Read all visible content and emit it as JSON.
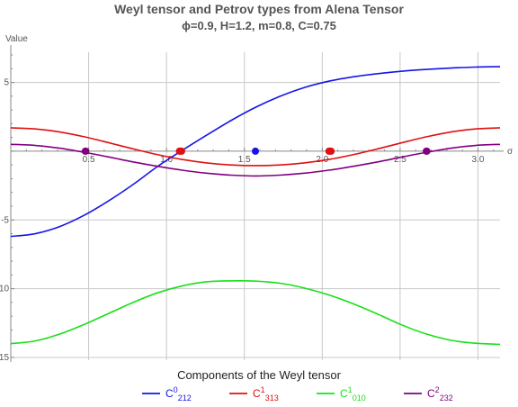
{
  "title": "Weyl tensor and Petrov types from Alena Tensor",
  "subtitle": "ϕ=0.9, H=1.2, m=0.8, C=0.75",
  "chart_data": {
    "type": "line",
    "ylabel": "Value",
    "xlabel": "σ",
    "xlim": [
      0,
      3.14159
    ],
    "ylim": [
      -15.2,
      7.2
    ],
    "grid": true,
    "x_ticks": [
      0.5,
      1.0,
      1.5,
      2.0,
      2.5,
      3.0
    ],
    "x_tick_labels": [
      "0.5",
      "1.0",
      "1.5",
      "2.0",
      "2.5",
      "3.0"
    ],
    "y_ticks": [
      -15,
      -10,
      -5,
      5
    ],
    "y_tick_labels": [
      "-15",
      "-10",
      "-5",
      "5"
    ],
    "x": [
      0,
      0.1571,
      0.3142,
      0.4712,
      0.6283,
      0.7854,
      0.9425,
      1.0996,
      1.2566,
      1.4137,
      1.5708,
      1.7279,
      1.885,
      2.042,
      2.1991,
      2.3562,
      2.5133,
      2.6704,
      2.8274,
      2.9845,
      3.1416
    ],
    "series": [
      {
        "color": "#1515e6",
        "values": [
          -6.2,
          -6.0,
          -5.48,
          -4.66,
          -3.61,
          -2.42,
          -1.11,
          0.05,
          1.16,
          2.23,
          3.19,
          3.99,
          4.63,
          5.09,
          5.41,
          5.64,
          5.82,
          5.95,
          6.05,
          6.12,
          6.15
        ]
      },
      {
        "color": "#e01010",
        "values": [
          1.7,
          1.62,
          1.4,
          1.05,
          0.62,
          0.17,
          -0.25,
          -0.6,
          -0.85,
          -1.0,
          -1.05,
          -1.0,
          -0.85,
          -0.6,
          -0.25,
          0.17,
          0.62,
          1.05,
          1.4,
          1.62,
          1.7
        ]
      },
      {
        "color": "#18e018",
        "values": [
          -14.0,
          -13.8,
          -13.3,
          -12.6,
          -11.8,
          -11.0,
          -10.3,
          -9.8,
          -9.5,
          -9.43,
          -9.45,
          -9.6,
          -9.95,
          -10.45,
          -11.1,
          -11.85,
          -12.65,
          -13.3,
          -13.75,
          -13.97,
          -14.05
        ]
      },
      {
        "color": "#800080",
        "values": [
          0.5,
          0.42,
          0.22,
          -0.08,
          -0.42,
          -0.78,
          -1.1,
          -1.38,
          -1.6,
          -1.74,
          -1.8,
          -1.74,
          -1.6,
          -1.38,
          -1.1,
          -0.78,
          -0.42,
          -0.08,
          0.22,
          0.42,
          0.5
        ]
      }
    ],
    "markers": [
      {
        "series": 0,
        "x": 1.5708,
        "y": 0,
        "shape": "dot"
      },
      {
        "series": 1,
        "x": 1.09,
        "y": 0,
        "shape": "bar",
        "width": 0.06
      },
      {
        "series": 1,
        "x": 2.05,
        "y": 0,
        "shape": "bar",
        "width": 0.06
      },
      {
        "series": 3,
        "x": 0.48,
        "y": 0,
        "shape": "bar",
        "width": 0.05
      },
      {
        "series": 3,
        "x": 2.67,
        "y": 0,
        "shape": "bar",
        "width": 0.05
      }
    ],
    "legend": {
      "title": "Components of the Weyl tensor",
      "placement": "bottom",
      "entries": [
        {
          "base": "C",
          "sup": "0",
          "sub": "212",
          "color": "#1515e6"
        },
        {
          "base": "C",
          "sup": "1",
          "sub": "313",
          "color": "#e01010"
        },
        {
          "base": "C",
          "sup": "1",
          "sub": "010",
          "color": "#18e018"
        },
        {
          "base": "C",
          "sup": "2",
          "sub": "232",
          "color": "#800080"
        }
      ]
    }
  }
}
